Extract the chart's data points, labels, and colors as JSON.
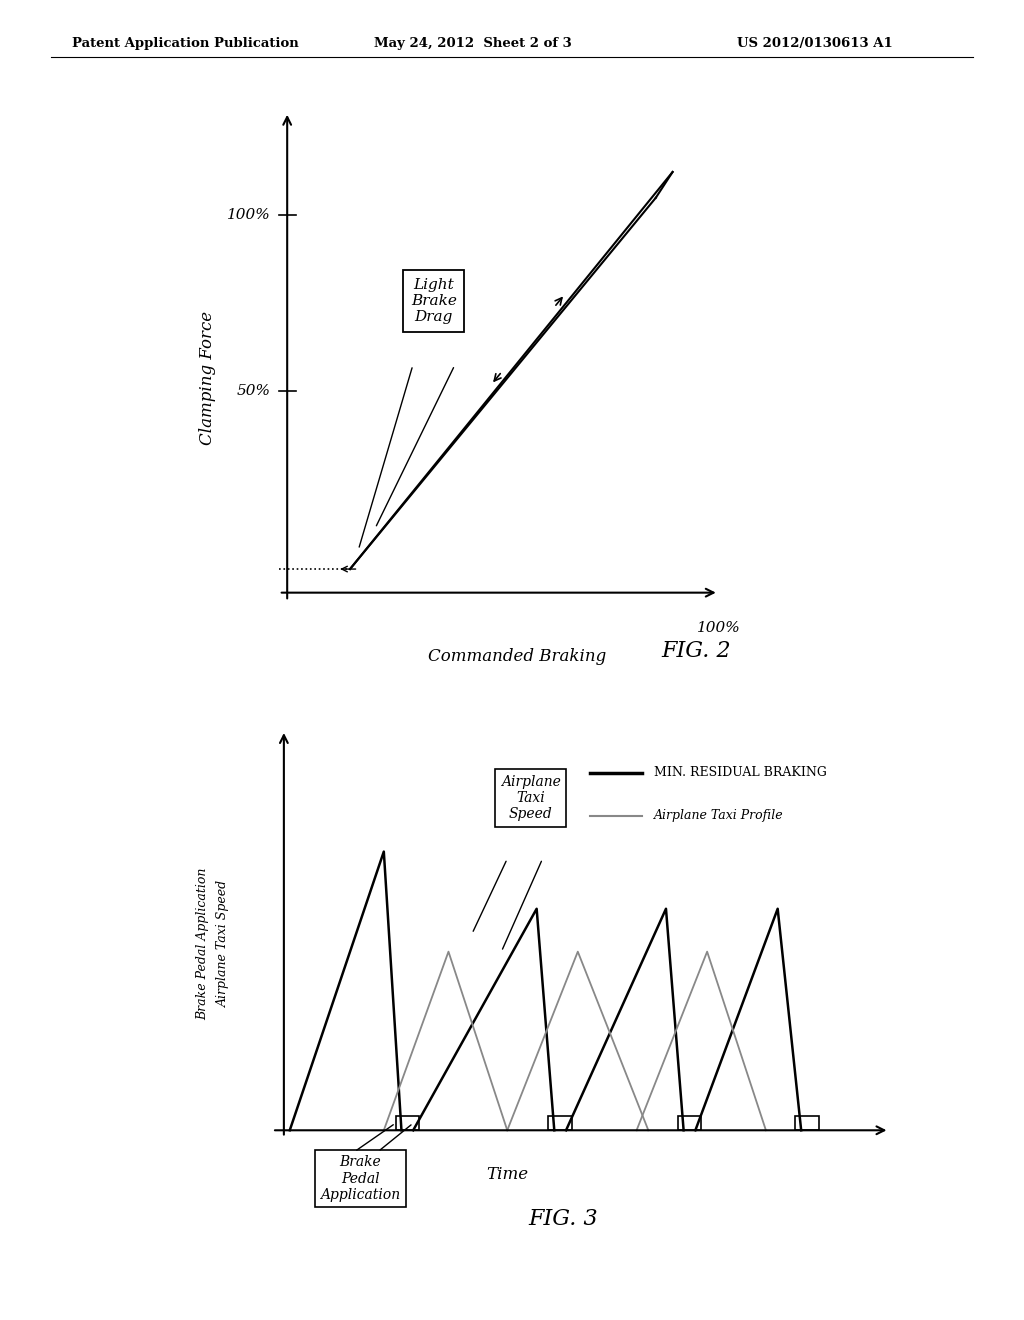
{
  "bg_color": "#ffffff",
  "header_left": "Patent Application Publication",
  "header_mid": "May 24, 2012  Sheet 2 of 3",
  "header_right": "US 2012/0130613 A1",
  "fig2": {
    "title": "FIG. 2",
    "xlabel": "Commanded Braking",
    "ylabel": "Clamping Force",
    "xlabel_100": "100%",
    "ytick_100": "100%",
    "ytick_50": "50%",
    "annotation": "Light\nBrake\nDrag"
  },
  "fig3": {
    "title": "FIG. 3",
    "xlabel": "Time",
    "legend_black": "MIN. RESIDUAL BRAKING",
    "legend_gray": "Airplane Taxi Profile",
    "annotation1": "Airplane\nTaxi\nSpeed",
    "annotation2": "Brake\nPedal\nApplication",
    "ylabel_line1": "Brake Pedal Application",
    "ylabel_line2": "Airplane Taxi Speed"
  }
}
